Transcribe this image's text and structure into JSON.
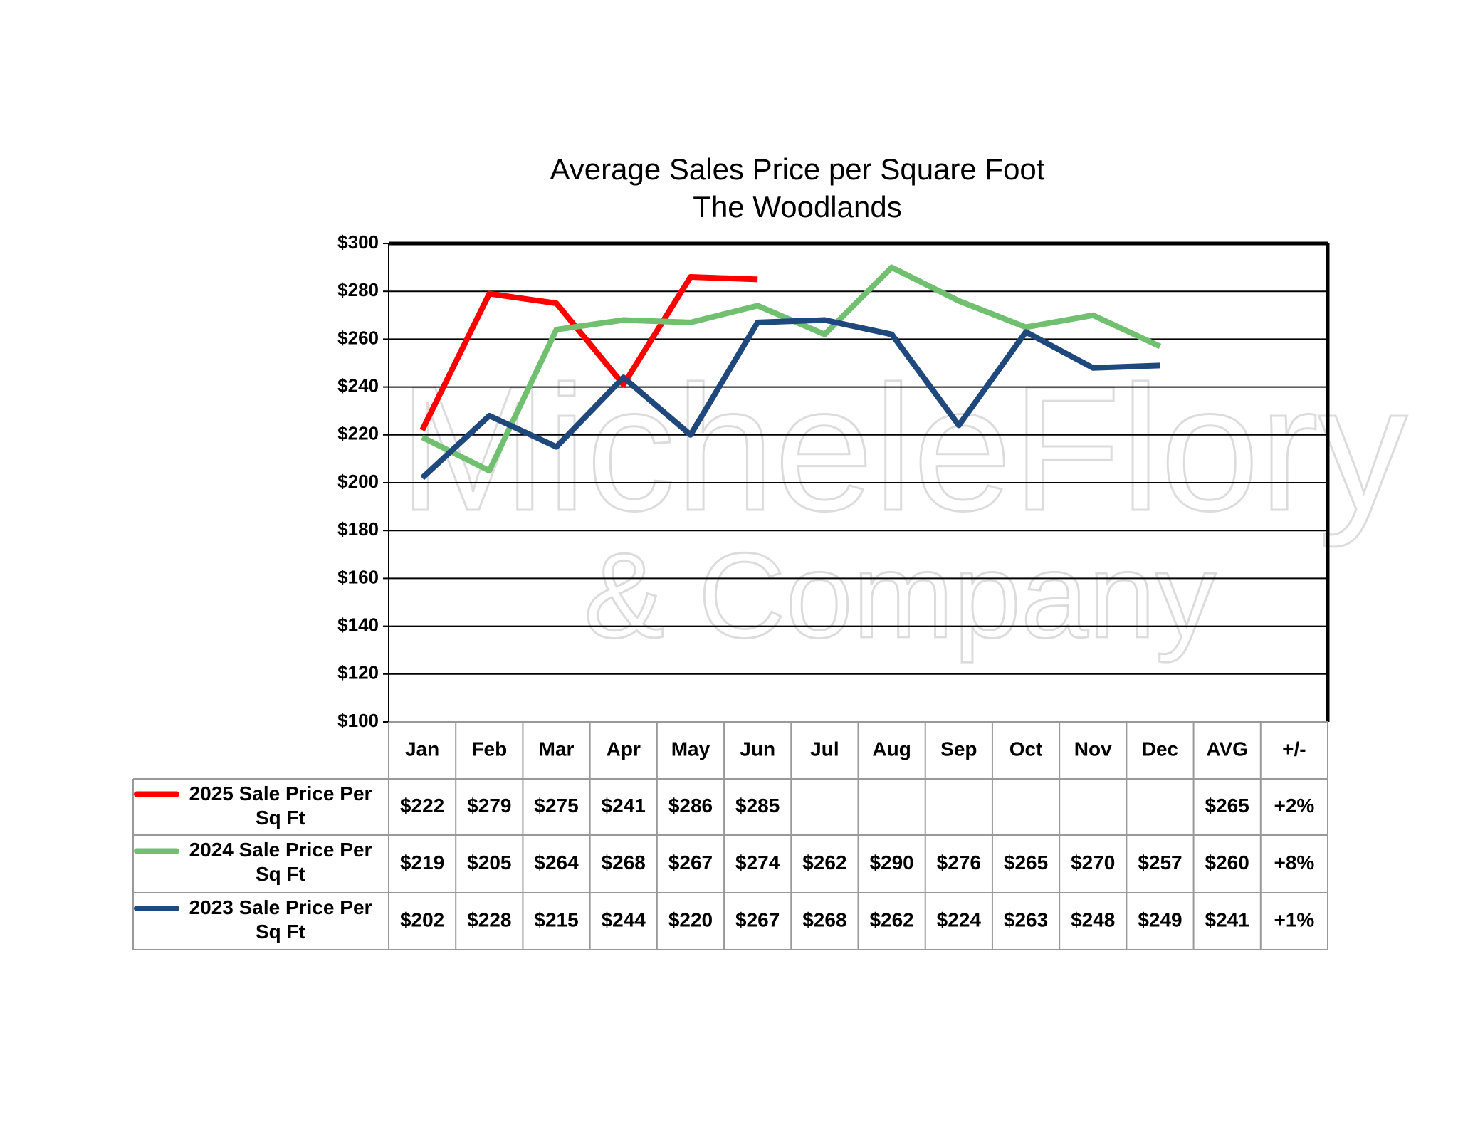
{
  "chart_data": {
    "type": "line",
    "title": "Average Sales Price per Square Foot",
    "subtitle": "The Woodlands",
    "watermark": [
      "MicheleFlory",
      "& Company"
    ],
    "categories": [
      "Jan",
      "Feb",
      "Mar",
      "Apr",
      "May",
      "Jun",
      "Jul",
      "Aug",
      "Sep",
      "Oct",
      "Nov",
      "Dec"
    ],
    "table_columns": [
      "AVG",
      "+/-"
    ],
    "ylim": [
      100,
      300
    ],
    "yticks": [
      {
        "value": 100,
        "label": "$100"
      },
      {
        "value": 120,
        "label": "$120"
      },
      {
        "value": 140,
        "label": "$140"
      },
      {
        "value": 160,
        "label": "$160"
      },
      {
        "value": 180,
        "label": "$180"
      },
      {
        "value": 200,
        "label": "$200"
      },
      {
        "value": 220,
        "label": "$220"
      },
      {
        "value": 240,
        "label": "$240"
      },
      {
        "value": 260,
        "label": "$260"
      },
      {
        "value": 280,
        "label": "$280"
      },
      {
        "value": 300,
        "label": "$300"
      }
    ],
    "grid": true,
    "series": [
      {
        "name": "2025 Sale Price Per Sq Ft",
        "color": "#ff0000",
        "values": [
          222,
          279,
          275,
          241,
          286,
          285,
          null,
          null,
          null,
          null,
          null,
          null
        ],
        "value_labels": [
          "$222",
          "$279",
          "$275",
          "$241",
          "$286",
          "$285",
          null,
          null,
          null,
          null,
          null,
          null
        ],
        "avg": 265,
        "avg_label": "$265",
        "change": 2,
        "change_label": "+2%"
      },
      {
        "name": "2024 Sale Price Per Sq Ft",
        "color": "#70c070",
        "values": [
          219,
          205,
          264,
          268,
          267,
          274,
          262,
          290,
          276,
          265,
          270,
          257
        ],
        "value_labels": [
          "$219",
          "$205",
          "$264",
          "$268",
          "$267",
          "$274",
          "$262",
          "$290",
          "$276",
          "$265",
          "$270",
          "$257"
        ],
        "avg": 260,
        "avg_label": "$260",
        "change": 8,
        "change_label": "+8%"
      },
      {
        "name": "2023 Sale Price Per Sq Ft",
        "color": "#1f497d",
        "values": [
          202,
          228,
          215,
          244,
          220,
          267,
          268,
          262,
          224,
          263,
          248,
          249
        ],
        "value_labels": [
          "$202",
          "$228",
          "$215",
          "$244",
          "$220",
          "$267",
          "$268",
          "$262",
          "$224",
          "$263",
          "$248",
          "$249"
        ],
        "avg": 241,
        "avg_label": "$241",
        "change": 1,
        "change_label": "+1%"
      }
    ]
  }
}
